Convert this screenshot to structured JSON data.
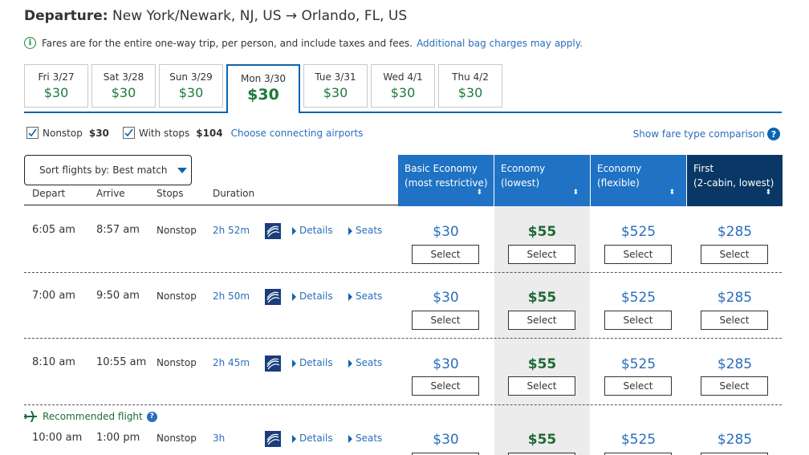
{
  "header": {
    "label": "Departure:",
    "route": "New York/Newark, NJ, US → Orlando, FL, US"
  },
  "notice": {
    "text": "Fares are for the entire one-way trip, per person, and include taxes and fees.",
    "link": "Additional bag charges may apply."
  },
  "dates": [
    {
      "date": "Fri 3/27",
      "price": "$30"
    },
    {
      "date": "Sat 3/28",
      "price": "$30"
    },
    {
      "date": "Sun 3/29",
      "price": "$30"
    },
    {
      "date": "Mon 3/30",
      "price": "$30",
      "selected": true
    },
    {
      "date": "Tue 3/31",
      "price": "$30"
    },
    {
      "date": "Wed 4/1",
      "price": "$30"
    },
    {
      "date": "Thu 4/2",
      "price": "$30"
    }
  ],
  "filters": {
    "nonstop": {
      "label": "Nonstop",
      "price": "$30",
      "checked": true
    },
    "with_stops": {
      "label": "With stops",
      "price": "$104",
      "checked": true
    },
    "connecting_link": "Choose connecting airports",
    "compare_link": "Show fare type comparison",
    "help_icon": "?"
  },
  "sort": {
    "label": "Sort flights by:",
    "value": "Best match"
  },
  "columns": {
    "depart": "Depart",
    "arrive": "Arrive",
    "stops": "Stops",
    "duration": "Duration"
  },
  "fare_headers": [
    {
      "line1": "Basic Economy",
      "line2": "(most restrictive)",
      "color": "#1f72c4"
    },
    {
      "line1": "Economy",
      "line2": "(lowest)",
      "color": "#1f72c4"
    },
    {
      "line1": "Economy",
      "line2": "(flexible)",
      "color": "#1f72c4"
    },
    {
      "line1": "First",
      "line2": "(2-cabin, lowest)",
      "color": "#0a3866"
    }
  ],
  "sort_arrow": "⬍",
  "details_label": "Details",
  "seats_label": "Seats",
  "select_label": "Select",
  "recommended": "Recommended flight",
  "flights": [
    {
      "depart": "6:05 am",
      "arrive": "8:57 am",
      "stops": "Nonstop",
      "duration": "2h 52m",
      "fares": [
        "$30",
        "$55",
        "$525",
        "$285"
      ]
    },
    {
      "depart": "7:00 am",
      "arrive": "9:50 am",
      "stops": "Nonstop",
      "duration": "2h 50m",
      "fares": [
        "$30",
        "$55",
        "$525",
        "$285"
      ]
    },
    {
      "depart": "8:10 am",
      "arrive": "10:55 am",
      "stops": "Nonstop",
      "duration": "2h 45m",
      "fares": [
        "$30",
        "$55",
        "$525",
        "$285"
      ]
    },
    {
      "depart": "10:00 am",
      "arrive": "1:00 pm",
      "stops": "Nonstop",
      "duration": "3h",
      "fares": [
        "$30",
        "$55",
        "$525",
        "$285"
      ]
    }
  ],
  "colors": {
    "accent": "#0c64b1",
    "price_green": "#1d6b36",
    "link_blue": "#2a6ebb"
  }
}
